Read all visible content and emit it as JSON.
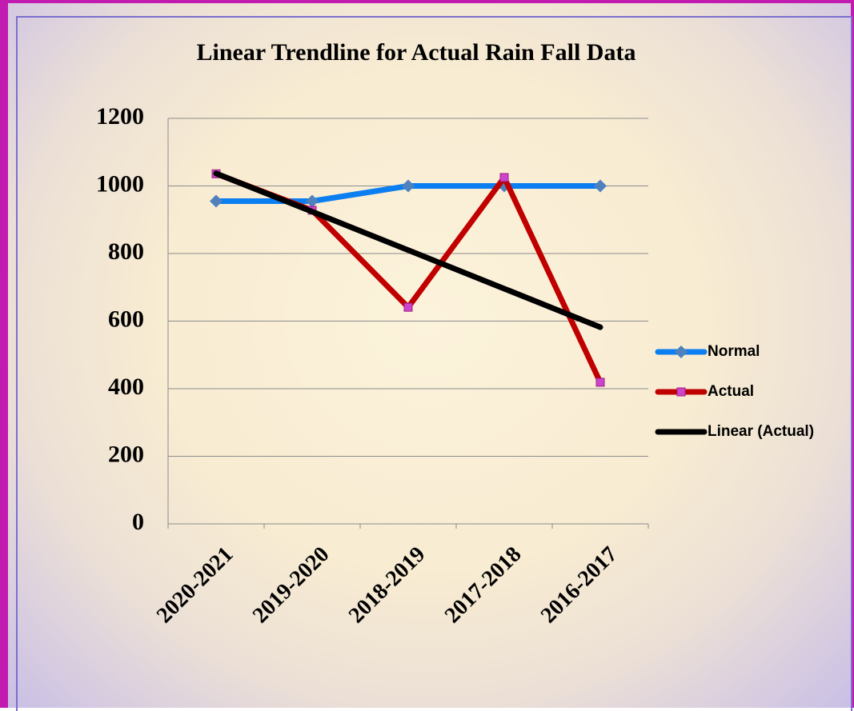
{
  "chart_data": {
    "type": "line",
    "title": "Linear Trendline for Actual Rain Fall Data",
    "categories": [
      "2020-2021",
      "2019-2020",
      "2018-2019",
      "2017-2018",
      "2016-2017"
    ],
    "series": [
      {
        "name": "Normal",
        "color": "#0b7ef2",
        "marker": "diamond",
        "marker_color": "#4f81bd",
        "values": [
          955,
          955,
          1000,
          1000,
          1000
        ]
      },
      {
        "name": "Actual",
        "color": "#c00000",
        "marker": "square",
        "marker_color": "#cc44cc",
        "values": [
          1036,
          928,
          641,
          1025,
          419
        ]
      },
      {
        "name": "Linear (Actual)",
        "color": "#000000",
        "marker": "none",
        "values": [
          1037,
          924,
          810,
          696,
          582
        ]
      }
    ],
    "ylim": [
      0,
      1200
    ],
    "yticks": [
      0,
      200,
      400,
      600,
      800,
      1000,
      1200
    ],
    "grid": true,
    "legend": "right"
  }
}
